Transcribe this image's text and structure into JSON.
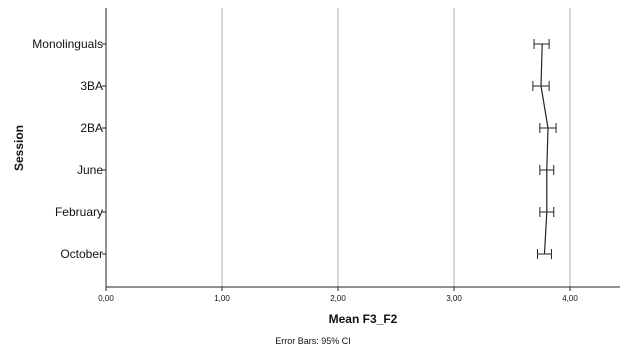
{
  "chart_data": {
    "type": "line",
    "xlabel": "Mean F3_F2",
    "ylabel": "Session",
    "xlim": [
      0,
      4.45
    ],
    "xticks": [
      "0,00",
      "1,00",
      "2,00",
      "3,00",
      "4,00"
    ],
    "xtick_values": [
      0,
      1,
      2,
      3,
      4
    ],
    "grid": "vertical",
    "categories": [
      "Monolinguals",
      "3BA",
      "2BA",
      "June",
      "February",
      "October"
    ],
    "series": [
      {
        "values": [
          3.76,
          3.75,
          3.81,
          3.8,
          3.8,
          3.78
        ],
        "ci_low": [
          3.69,
          3.68,
          3.74,
          3.74,
          3.74,
          3.72
        ],
        "ci_high": [
          3.82,
          3.82,
          3.88,
          3.86,
          3.86,
          3.84
        ]
      }
    ],
    "footnote": "Error Bars: 95% CI"
  }
}
